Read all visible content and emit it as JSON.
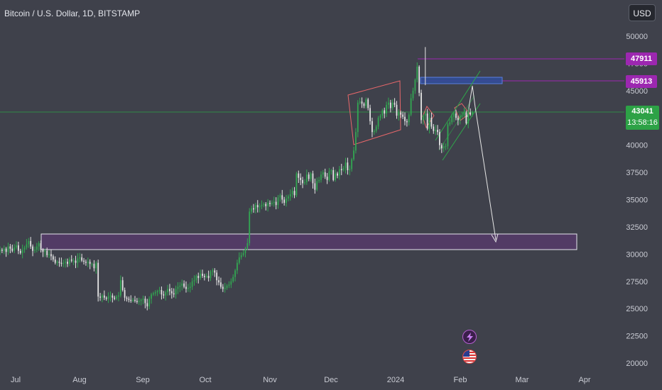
{
  "header": {
    "title": "Bitcoin / U.S. Dollar, 1D, BITSTAMP",
    "currency": "USD"
  },
  "price_labels": {
    "high": "47911",
    "resistance": "45913",
    "current_price": "43041",
    "countdown": "13:58:16"
  },
  "colors": {
    "background": "#3f414b",
    "bull": "#32a852",
    "bear": "#e6e6e6",
    "accent_purple": "#9c27b0",
    "zone_fill": "#523b65",
    "current_price": "#2da246"
  },
  "chart_data": {
    "type": "candlestick",
    "title": "Bitcoin / U.S. Dollar, 1D, BITSTAMP",
    "x_ticks": [
      "Jul",
      "Aug",
      "Sep",
      "Oct",
      "Nov",
      "Dec",
      "2024",
      "Feb",
      "Mar",
      "Apr"
    ],
    "y_ticks": [
      50000,
      47500,
      45000,
      42500,
      40000,
      37500,
      35000,
      32500,
      30000,
      27500,
      25000,
      22500,
      20000
    ],
    "ylim": [
      19600,
      51800
    ],
    "grid": false,
    "closes": [
      30400,
      30300,
      30500,
      30200,
      30700,
      30500,
      30300,
      30600,
      30800,
      30300,
      30100,
      30400,
      30600,
      30900,
      31200,
      30700,
      30300,
      30400,
      30700,
      31000,
      30400,
      30200,
      30300,
      29900,
      30000,
      29800,
      29500,
      29200,
      29300,
      29200,
      29100,
      29200,
      29300,
      29100,
      29500,
      29400,
      29400,
      29200,
      29600,
      29700,
      29400,
      29300,
      29200,
      29300,
      29100,
      29100,
      28700,
      29200,
      26100,
      26000,
      26200,
      26000,
      25900,
      26100,
      26200,
      26000,
      25900,
      26100,
      26200,
      27600,
      26700,
      26000,
      25900,
      25800,
      25700,
      25800,
      25700,
      25600,
      25700,
      25800,
      25900,
      25500,
      25200,
      25900,
      26300,
      26400,
      26500,
      26600,
      26700,
      26300,
      26200,
      26500,
      26800,
      26600,
      26400,
      26300,
      26800,
      27000,
      27100,
      27300,
      27000,
      26800,
      26900,
      27000,
      27500,
      27600,
      28000,
      27800,
      28200,
      28000,
      27900,
      28000,
      27800,
      28400,
      28500,
      28300,
      27600,
      27400,
      27000,
      26800,
      26900,
      27100,
      27200,
      27500,
      27900,
      28500,
      29200,
      29700,
      29900,
      30100,
      30500,
      31000,
      33900,
      34200,
      34100,
      34500,
      34300,
      34400,
      34500,
      34600,
      34400,
      34700,
      34600,
      34700,
      34800,
      34500,
      35200,
      35400,
      35000,
      34700,
      35100,
      35300,
      35500,
      35800,
      35400,
      37400,
      37000,
      36800,
      36500,
      36600,
      37300,
      36900,
      37400,
      36500,
      35900,
      36700,
      36800,
      37300,
      37500,
      37100,
      36800,
      37600,
      37700,
      36800,
      37400,
      37200,
      37800,
      37700,
      37900,
      38400,
      37700,
      37800,
      38700,
      39500,
      41200,
      43900,
      44000,
      43800,
      43600,
      44200,
      43400,
      42200,
      41200,
      41300,
      41700,
      42500,
      42700,
      43200,
      42900,
      43700,
      43900,
      43400,
      43900,
      43700,
      42700,
      43000,
      42800,
      42600,
      42200,
      42100,
      42800,
      44300,
      45000,
      46000,
      47200,
      44800,
      42300,
      42700,
      42900,
      41500,
      42500,
      41700,
      41300,
      41400,
      41200,
      40000,
      39700,
      39900,
      39900,
      41900,
      42100,
      42600,
      42900,
      42500,
      42300,
      42700,
      42700,
      43000,
      42000,
      43000,
      42800,
      43041
    ]
  }
}
